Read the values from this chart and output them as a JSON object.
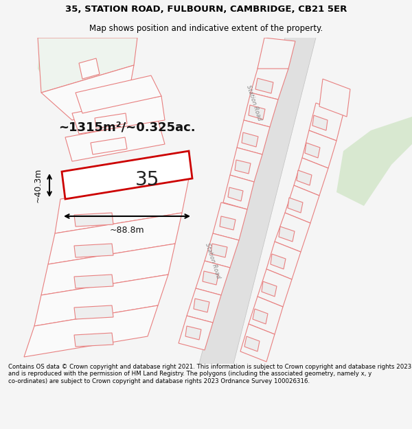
{
  "title_line1": "35, STATION ROAD, FULBOURN, CAMBRIDGE, CB21 5ER",
  "title_line2": "Map shows position and indicative extent of the property.",
  "footer_text": "Contains OS data © Crown copyright and database right 2021. This information is subject to Crown copyright and database rights 2023 and is reproduced with the permission of HM Land Registry. The polygons (including the associated geometry, namely x, y co-ordinates) are subject to Crown copyright and database rights 2023 Ordnance Survey 100026316.",
  "area_label": "~1315m²/~0.325ac.",
  "width_label": "~88.8m",
  "height_label": "~40.3m",
  "property_number": "35",
  "bg_color": "#f8f8f8",
  "map_bg": "#ffffff",
  "road_color": "#f0f0f0",
  "plot_line_color": "#e88080",
  "highlight_color": "#cc0000",
  "green_color": "#d8e8d0",
  "road_fill": "#e8e8e8"
}
